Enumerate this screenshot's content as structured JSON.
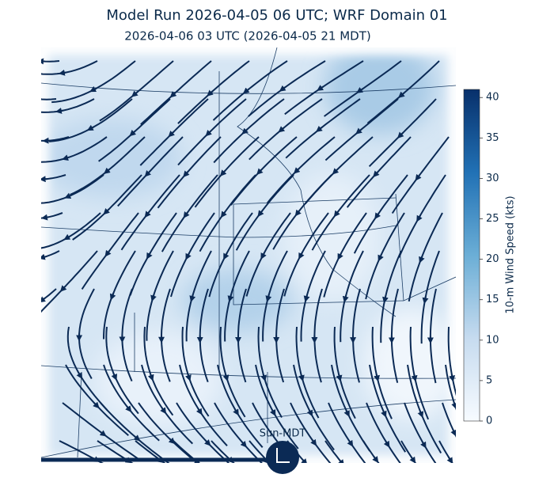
{
  "title": "Model Run 2026-04-05 06 UTC; WRF Domain 01",
  "subtitle": "2026-04-06 03 UTC  (2026-04-05 21 MDT)",
  "colorbar": {
    "label": "10-m Wind Speed (kts)",
    "lim": [
      0,
      41
    ],
    "ticks": [
      0,
      5,
      10,
      15,
      20,
      25,
      30,
      35,
      40
    ]
  },
  "timeline_label": "Sun-MDT"
}
